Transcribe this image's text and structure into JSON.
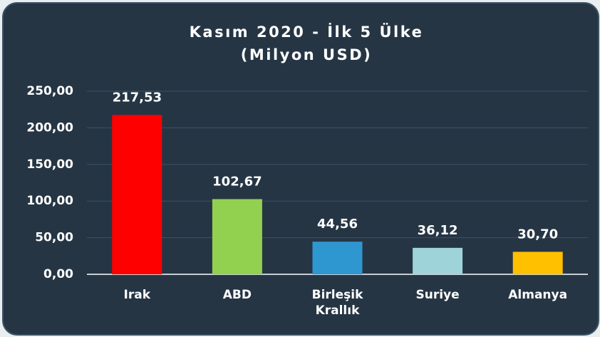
{
  "chart_data": {
    "type": "bar",
    "title": "Kasım 2020 - İlk 5 Ülke",
    "subtitle": "(Milyon USD)",
    "categories": [
      "Irak",
      "ABD",
      "Birleşik Krallık",
      "Suriye",
      "Almanya"
    ],
    "values": [
      217.53,
      102.67,
      44.56,
      36.12,
      30.7
    ],
    "value_labels": [
      "217,53",
      "102,67",
      "44,56",
      "36,12",
      "30,70"
    ],
    "colors": [
      "#ff0000",
      "#92d050",
      "#2f97cf",
      "#9fd3da",
      "#ffc000"
    ],
    "ylim": [
      0,
      250
    ],
    "yticks": [
      {
        "value": 0,
        "label": "0,00"
      },
      {
        "value": 50,
        "label": "50,00"
      },
      {
        "value": 100,
        "label": "100,00"
      },
      {
        "value": 150,
        "label": "150,00"
      },
      {
        "value": 200,
        "label": "200,00"
      },
      {
        "value": 250,
        "label": "250,00"
      }
    ],
    "grid": true
  }
}
